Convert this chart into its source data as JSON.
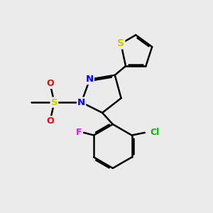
{
  "bg_color": "#ebebeb",
  "bond_color": "#000000",
  "bond_width": 1.8,
  "atom_colors": {
    "S_thiophene": "#cccc00",
    "S_sulfonyl": "#cccc00",
    "N": "#0000ff",
    "O": "#ff0000",
    "F": "#ff00ff",
    "Cl": "#00bb00",
    "C": "#000000"
  },
  "font_size": 9
}
